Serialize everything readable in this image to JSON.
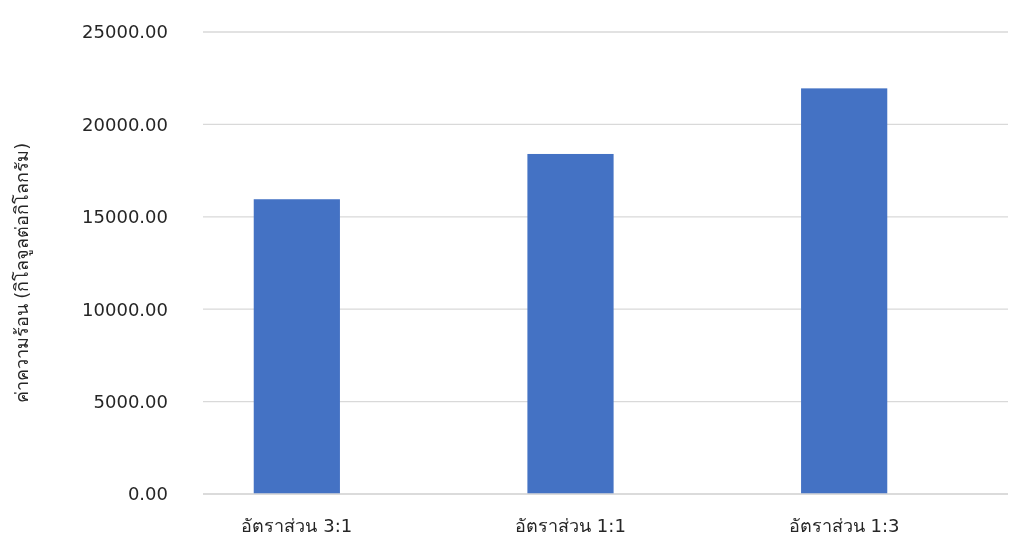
{
  "chart_data": {
    "type": "bar",
    "ylabel": "ค่าความร้อน (กิโลจูลต่อกิโลกรัม)",
    "categories": [
      "อัตราส่วน 3:1",
      "อัตราส่วน 1:1",
      "อัตราส่วน 1:3"
    ],
    "values": [
      15950,
      18400,
      21950
    ],
    "color": "#4472c4",
    "ylim": [
      0,
      25000
    ],
    "yticks": [
      {
        "value": 0,
        "label": "0.00"
      },
      {
        "value": 5000,
        "label": "5000.00"
      },
      {
        "value": 10000,
        "label": "10000.00"
      },
      {
        "value": 15000,
        "label": "15000.00"
      },
      {
        "value": 20000,
        "label": "20000.00"
      },
      {
        "value": 25000,
        "label": "25000.00"
      }
    ],
    "grid": "y"
  }
}
